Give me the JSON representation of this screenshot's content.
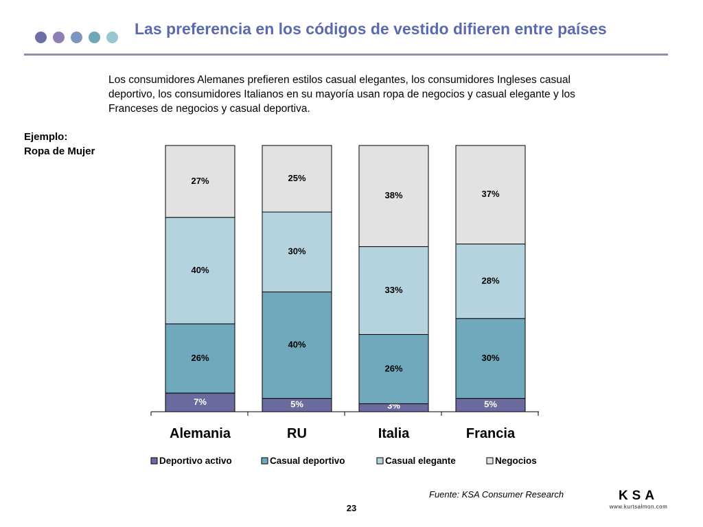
{
  "header": {
    "title": "Las preferencia en los códigos de vestido difieren entre países",
    "title_color": "#5b6ab0",
    "rule_color": "#8c8fae",
    "dot_colors": [
      "#6a6fa5",
      "#8b7fb3",
      "#7b96c0",
      "#6fa6b8",
      "#99c7cf"
    ]
  },
  "intro_text": "Los consumidores Alemanes prefieren estilos casual elegantes, los consumidores Ingleses casual deportivo, los consumidores Italianos en su mayoría usan ropa de negocios y casual elegante y los Franceses de negocios y casual deportiva.",
  "example": {
    "line1": "Ejemplo:",
    "line2": "Ropa de Mujer"
  },
  "chart_data": {
    "type": "bar",
    "stacked": true,
    "categories": [
      "Alemania",
      "RU",
      "Italia",
      "Francia"
    ],
    "series": [
      {
        "name": "Deportivo activo",
        "color": "#6b6b9f",
        "label_color": "#ffffff",
        "values": [
          7,
          5,
          3,
          5
        ],
        "labels": [
          "7%",
          "5%",
          "3%",
          "5%"
        ]
      },
      {
        "name": "Casual deportivo",
        "color": "#6fa9bb",
        "label_color": "#000000",
        "values": [
          26,
          40,
          26,
          30
        ],
        "labels": [
          "26%",
          "40%",
          "26%",
          "30%"
        ]
      },
      {
        "name": "Casual elegante",
        "color": "#b4d3df",
        "label_color": "#000000",
        "values": [
          40,
          30,
          33,
          28
        ],
        "labels": [
          "40%",
          "30%",
          "33%",
          "28%"
        ]
      },
      {
        "name": "Negocios",
        "color": "#e2e2e2",
        "label_color": "#000000",
        "values": [
          27,
          25,
          38,
          37
        ],
        "labels": [
          "27%",
          "25%",
          "38%",
          "37%"
        ]
      }
    ],
    "ylim": [
      0,
      100
    ],
    "grid": false,
    "legend_position": "bottom"
  },
  "footer": {
    "source": "Fuente:  KSA Consumer Research",
    "page_number": "23",
    "logo_text": "KSA",
    "logo_url": "www.kurtsalmon.com"
  }
}
